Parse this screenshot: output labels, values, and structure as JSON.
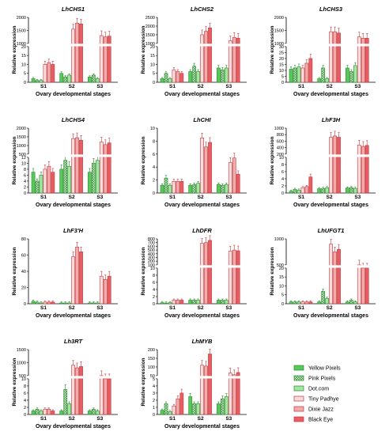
{
  "ylabel": "Relative expression",
  "xlabel": "Ovary developmental stages",
  "stages": [
    "S1",
    "S2",
    "S3"
  ],
  "legend": [
    {
      "label": "Yellow Pixels",
      "fill": "#59c85a",
      "stroke": "#2b8a2f",
      "pattern": "solid"
    },
    {
      "label": "Pink Pixels",
      "fill": "#bfe8bd",
      "stroke": "#2b8a2f",
      "pattern": "cross"
    },
    {
      "label": "Dot.com",
      "fill": "#a6e4a2",
      "stroke": "#2b8a2f",
      "pattern": "solid"
    },
    {
      "label": "Tiny Padhye",
      "fill": "#f7dcdc",
      "stroke": "#c0383d",
      "pattern": "solid"
    },
    {
      "label": "Dixie Jazz",
      "fill": "#f2aaaa",
      "stroke": "#c0383d",
      "pattern": "solid"
    },
    {
      "label": "Black Eye",
      "fill": "#e85d62",
      "stroke": "#c0383d",
      "pattern": "solid"
    }
  ],
  "chart_data": [
    {
      "type": "bar",
      "title": "LhCHS1",
      "categories": [
        "S1",
        "S2",
        "S3"
      ],
      "broken_axis": true,
      "lower_ticks": [
        0,
        5,
        10,
        15,
        20
      ],
      "upper_ticks": [
        1000,
        1500,
        2000
      ],
      "series": [
        {
          "name": "Yellow Pixels",
          "values": [
            2,
            5,
            3
          ]
        },
        {
          "name": "Pink Pixels",
          "values": [
            1,
            3,
            4
          ]
        },
        {
          "name": "Dot.com",
          "values": [
            1,
            4,
            2
          ]
        },
        {
          "name": "Tiny Padhye",
          "values": [
            10,
            1550,
            1300
          ]
        },
        {
          "name": "Dixie Jazz",
          "values": [
            11,
            1780,
            1250
          ]
        },
        {
          "name": "Black Eye",
          "values": [
            10,
            1750,
            1280
          ]
        }
      ]
    },
    {
      "type": "bar",
      "title": "LhCHS2",
      "categories": [
        "S1",
        "S2",
        "S3"
      ],
      "broken_axis": true,
      "lower_ticks": [
        0,
        5,
        10,
        15,
        20
      ],
      "upper_ticks": [
        1000,
        1500,
        2000,
        2500
      ],
      "series": [
        {
          "name": "Yellow Pixels",
          "values": [
            2,
            6,
            8
          ]
        },
        {
          "name": "Pink Pixels",
          "values": [
            5,
            9,
            7
          ]
        },
        {
          "name": "Dot.com",
          "values": [
            2,
            6,
            8
          ]
        },
        {
          "name": "Tiny Padhye",
          "values": [
            7,
            1500,
            1150
          ]
        },
        {
          "name": "Dixie Jazz",
          "values": [
            6,
            1700,
            1350
          ]
        },
        {
          "name": "Black Eye",
          "values": [
            5,
            1900,
            1300
          ]
        }
      ]
    },
    {
      "type": "bar",
      "title": "LhCHS3",
      "categories": [
        "S1",
        "S2",
        "S3"
      ],
      "broken_axis": true,
      "lower_ticks": [
        0,
        5,
        10,
        15,
        20,
        25,
        30
      ],
      "upper_ticks": [
        1000,
        1500,
        2000
      ],
      "series": [
        {
          "name": "Yellow Pixels",
          "values": [
            11,
            3,
            12
          ]
        },
        {
          "name": "Pink Pixels",
          "values": [
            12,
            12,
            9
          ]
        },
        {
          "name": "Dot.com",
          "values": [
            13,
            3,
            14
          ]
        },
        {
          "name": "Tiny Padhye",
          "values": [
            12,
            1450,
            1250
          ]
        },
        {
          "name": "Dixie Jazz",
          "values": [
            16,
            1450,
            1200
          ]
        },
        {
          "name": "Black Eye",
          "values": [
            20,
            1400,
            1200
          ]
        }
      ]
    },
    {
      "type": "bar",
      "title": "LhCHS4",
      "categories": [
        "S1",
        "S2",
        "S3"
      ],
      "broken_axis": true,
      "lower_ticks": [
        0,
        2,
        4,
        6,
        8,
        10,
        12
      ],
      "upper_ticks": [
        500,
        1000,
        1500,
        2000
      ],
      "series": [
        {
          "name": "Yellow Pixels",
          "values": [
            7,
            8,
            7
          ]
        },
        {
          "name": "Pink Pixels",
          "values": [
            4,
            11,
            10
          ]
        },
        {
          "name": "Dot.com",
          "values": [
            6,
            9,
            11
          ]
        },
        {
          "name": "Tiny Padhye",
          "values": [
            8,
            1400,
            1200
          ]
        },
        {
          "name": "Dixie Jazz",
          "values": [
            9,
            1450,
            1050
          ]
        },
        {
          "name": "Black Eye",
          "values": [
            7,
            1300,
            1150
          ]
        }
      ]
    },
    {
      "type": "bar",
      "title": "LhCHI",
      "categories": [
        "S1",
        "S2",
        "S3"
      ],
      "broken_axis": false,
      "ylim": [
        0,
        10
      ],
      "lower_ticks": [
        0,
        2,
        4,
        6,
        8,
        10
      ],
      "upper_ticks": [],
      "series": [
        {
          "name": "Yellow Pixels",
          "values": [
            1.2,
            1.2,
            1.3
          ]
        },
        {
          "name": "Pink Pixels",
          "values": [
            2.3,
            1.3,
            1.2
          ]
        },
        {
          "name": "Dot.com",
          "values": [
            1.2,
            1.5,
            1.3
          ]
        },
        {
          "name": "Tiny Padhye",
          "values": [
            1.8,
            8.5,
            4.7
          ]
        },
        {
          "name": "Dixie Jazz",
          "values": [
            1.8,
            7.1,
            5.4
          ]
        },
        {
          "name": "Black Eye",
          "values": [
            1.8,
            7.8,
            2.9
          ]
        }
      ]
    },
    {
      "type": "bar",
      "title": "LhF3H",
      "categories": [
        "S1",
        "S2",
        "S3"
      ],
      "broken_axis": true,
      "lower_ticks": [
        0,
        2,
        4,
        6,
        8,
        10
      ],
      "upper_ticks": [
        200,
        400,
        600,
        800,
        1000
      ],
      "series": [
        {
          "name": "Yellow Pixels",
          "values": [
            0.5,
            1.2,
            1.4
          ]
        },
        {
          "name": "Pink Pixels",
          "values": [
            1,
            1.3,
            1.5
          ]
        },
        {
          "name": "Dot.com",
          "values": [
            0.8,
            1.5,
            1.3
          ]
        },
        {
          "name": "Tiny Padhye",
          "values": [
            1.5,
            720,
            480
          ]
        },
        {
          "name": "Dixie Jazz",
          "values": [
            1.8,
            760,
            440
          ]
        },
        {
          "name": "Black Eye",
          "values": [
            4.5,
            720,
            470
          ]
        }
      ]
    },
    {
      "type": "bar",
      "title": "LhF3'H",
      "categories": [
        "S1",
        "S2",
        "S3"
      ],
      "broken_axis": false,
      "ylim": [
        0,
        80
      ],
      "lower_ticks": [
        0,
        20,
        40,
        60,
        80
      ],
      "upper_ticks": [],
      "series": [
        {
          "name": "Yellow Pixels",
          "values": [
            3,
            1,
            1
          ]
        },
        {
          "name": "Pink Pixels",
          "values": [
            2,
            1,
            1
          ]
        },
        {
          "name": "Dot.com",
          "values": [
            1,
            1,
            1
          ]
        },
        {
          "name": "Tiny Padhye",
          "values": [
            2,
            58,
            34
          ]
        },
        {
          "name": "Dixie Jazz",
          "values": [
            2,
            70,
            30
          ]
        },
        {
          "name": "Black Eye",
          "values": [
            2,
            64,
            34
          ]
        }
      ]
    },
    {
      "type": "bar",
      "title": "LhDFR",
      "categories": [
        "S1",
        "S2",
        "S3"
      ],
      "broken_axis": true,
      "lower_ticks": [
        0,
        2,
        4,
        6,
        8,
        10
      ],
      "upper_ticks": [
        100,
        200,
        300,
        400,
        500,
        600,
        700,
        800
      ],
      "series": [
        {
          "name": "Yellow Pixels",
          "values": [
            0.3,
            1,
            1
          ]
        },
        {
          "name": "Pink Pixels",
          "values": [
            0.2,
            1,
            1
          ]
        },
        {
          "name": "Dot.com",
          "values": [
            0.3,
            1,
            1
          ]
        },
        {
          "name": "Tiny Padhye",
          "values": [
            1,
            680,
            470
          ]
        },
        {
          "name": "Dixie Jazz",
          "values": [
            1,
            700,
            500
          ]
        },
        {
          "name": "Black Eye",
          "values": [
            1,
            760,
            480
          ]
        }
      ]
    },
    {
      "type": "bar",
      "title": "LhUFGT1",
      "categories": [
        "S1",
        "S2",
        "S3"
      ],
      "broken_axis": true,
      "lower_ticks": [
        0,
        5,
        10,
        15,
        20
      ],
      "upper_ticks": [
        500,
        1000
      ],
      "series": [
        {
          "name": "Yellow Pixels",
          "values": [
            1,
            1,
            1
          ]
        },
        {
          "name": "Pink Pixels",
          "values": [
            1,
            7,
            2
          ]
        },
        {
          "name": "Dot.com",
          "values": [
            1,
            3,
            1
          ]
        },
        {
          "name": "Tiny Padhye",
          "values": [
            1,
            900,
            500
          ]
        },
        {
          "name": "Dixie Jazz",
          "values": [
            1,
            750,
            420
          ]
        },
        {
          "name": "Black Eye",
          "values": [
            1,
            800,
            380
          ]
        }
      ]
    },
    {
      "type": "bar",
      "title": "Lh3RT",
      "categories": [
        "S1",
        "S2",
        "S3"
      ],
      "broken_axis": true,
      "lower_ticks": [
        0,
        2,
        4,
        6,
        8,
        10
      ],
      "upper_ticks": [
        500,
        1000,
        1500
      ],
      "series": [
        {
          "name": "Yellow Pixels",
          "values": [
            1,
            1,
            1
          ]
        },
        {
          "name": "Pink Pixels",
          "values": [
            1.5,
            7,
            1.5
          ]
        },
        {
          "name": "Dot.com",
          "values": [
            1,
            3,
            1
          ]
        },
        {
          "name": "Tiny Padhye",
          "values": [
            1.5,
            900,
            500
          ]
        },
        {
          "name": "Dixie Jazz",
          "values": [
            1.5,
            800,
            450
          ]
        },
        {
          "name": "Black Eye",
          "values": [
            1,
            850,
            380
          ]
        }
      ]
    },
    {
      "type": "bar",
      "title": "LhMYB",
      "categories": [
        "S1",
        "S2",
        "S3"
      ],
      "broken_axis": true,
      "lower_ticks": [
        0,
        1,
        2,
        3,
        4,
        5
      ],
      "upper_ticks": [
        50,
        100,
        150,
        200
      ],
      "series": [
        {
          "name": "Yellow Pixels",
          "values": [
            0.6,
            2.5,
            1.5
          ]
        },
        {
          "name": "Pink Pixels",
          "values": [
            1.5,
            1.5,
            2.2
          ]
        },
        {
          "name": "Dot.com",
          "values": [
            0.4,
            1.5,
            2.5
          ]
        },
        {
          "name": "Tiny Padhye",
          "values": [
            1.2,
            110,
            65
          ]
        },
        {
          "name": "Dixie Jazz",
          "values": [
            2.2,
            105,
            55
          ]
        },
        {
          "name": "Black Eye",
          "values": [
            3,
            175,
            68
          ]
        }
      ]
    }
  ]
}
